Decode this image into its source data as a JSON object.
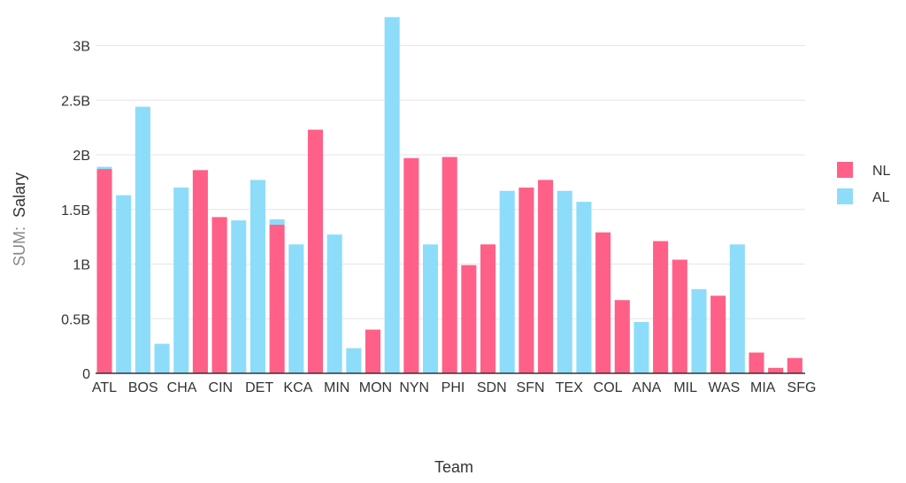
{
  "chart_data": {
    "type": "bar",
    "xlabel": "Team",
    "ylabel_prefix": "SUM:",
    "ylabel_field": "Salary",
    "ylim": [
      0,
      3.3
    ],
    "yticks": [
      {
        "value": 0,
        "label": "0"
      },
      {
        "value": 0.5,
        "label": "0.5B"
      },
      {
        "value": 1,
        "label": "1B"
      },
      {
        "value": 1.5,
        "label": "1.5B"
      },
      {
        "value": 2,
        "label": "2B"
      },
      {
        "value": 2.5,
        "label": "2.5B"
      },
      {
        "value": 3,
        "label": "3B"
      }
    ],
    "legend_position": "right",
    "grid": true,
    "series": [
      {
        "name": "NL",
        "color": "#ff6088"
      },
      {
        "name": "AL",
        "color": "#8ddcfa"
      }
    ],
    "categories": [
      "ATL",
      "BOS",
      "CHA",
      "CIN",
      "DET",
      "KCA",
      "MIN",
      "MON",
      "NYN",
      "PHI",
      "SDN",
      "SFN",
      "TEX",
      "COL",
      "ANA",
      "MIL",
      "WAS",
      "MIA",
      "SFG"
    ],
    "bars": [
      {
        "series": "NL",
        "value": 1.87
      },
      {
        "series": "AL",
        "value": 1.63
      },
      {
        "series": "AL",
        "value": 2.44
      },
      {
        "series": "AL",
        "value": 0.27
      },
      {
        "series": "AL",
        "value": 1.7
      },
      {
        "series": "NL",
        "value": 1.86
      },
      {
        "series": "NL",
        "value": 1.43
      },
      {
        "series": "AL",
        "value": 1.4
      },
      {
        "series": "AL",
        "value": 1.77
      },
      {
        "series": "NL",
        "value": 1.36
      },
      {
        "series": "AL",
        "value": 1.18
      },
      {
        "series": "NL",
        "value": 2.23
      },
      {
        "series": "AL",
        "value": 1.27
      },
      {
        "series": "AL",
        "value": 0.23
      },
      {
        "series": "NL",
        "value": 0.4
      },
      {
        "series": "AL",
        "value": 3.26
      },
      {
        "series": "NL",
        "value": 1.97
      },
      {
        "series": "AL",
        "value": 1.18
      },
      {
        "series": "NL",
        "value": 1.98
      },
      {
        "series": "NL",
        "value": 0.99
      },
      {
        "series": "NL",
        "value": 1.18
      },
      {
        "series": "AL",
        "value": 1.67
      },
      {
        "series": "NL",
        "value": 1.7
      },
      {
        "series": "NL",
        "value": 1.77
      },
      {
        "series": "AL",
        "value": 1.67
      },
      {
        "series": "AL",
        "value": 1.57
      },
      {
        "series": "NL",
        "value": 1.29
      },
      {
        "series": "NL",
        "value": 0.67
      },
      {
        "series": "AL",
        "value": 0.47
      },
      {
        "series": "NL",
        "value": 1.21
      },
      {
        "series": "NL",
        "value": 1.04
      },
      {
        "series": "AL",
        "value": 0.77
      },
      {
        "series": "NL",
        "value": 0.71
      },
      {
        "series": "AL",
        "value": 1.18
      },
      {
        "series": "NL",
        "value": 0.19
      },
      {
        "series": "NL",
        "value": 0.05
      },
      {
        "series": "NL",
        "value": 0.14
      }
    ],
    "overlay_bars": [
      {
        "series": "AL",
        "value": 1.89
      },
      {
        "series": "AL",
        "value": 1.41
      }
    ]
  }
}
